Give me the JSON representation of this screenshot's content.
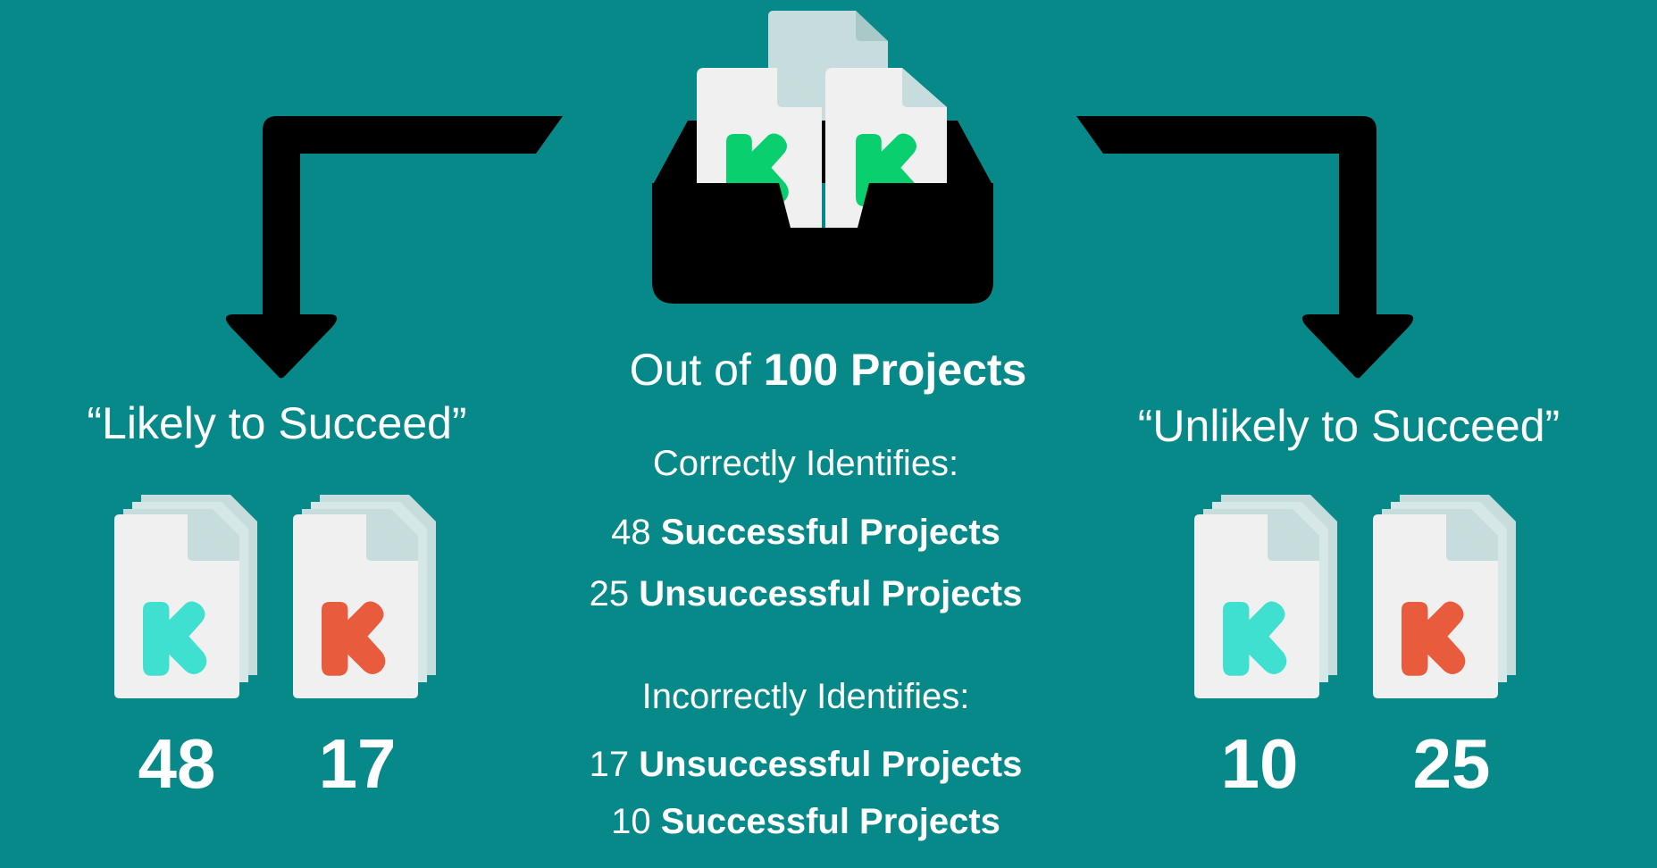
{
  "colors": {
    "background": "#078989",
    "arrow": "#000000",
    "paper": "#f0f0f0",
    "paper_back": "#c7dcdc",
    "k_green": "#0acf6e",
    "k_teal": "#40e0d0",
    "k_red": "#e85b3c",
    "text": "#ffffff"
  },
  "center": {
    "title_prefix": "Out of",
    "title_bold": "100 Projects",
    "correct_heading": "Correctly Identifies:",
    "correct_items": [
      {
        "num": "48",
        "label": "Successful Projects"
      },
      {
        "num": "25",
        "label": "Unsuccessful Projects"
      }
    ],
    "incorrect_heading": "Incorrectly Identifies:",
    "incorrect_items": [
      {
        "num": "17",
        "label": "Unsuccessful Projects"
      },
      {
        "num": "10",
        "label": "Successful Projects"
      }
    ]
  },
  "left": {
    "label": "“Likely to Succeed”",
    "counts": [
      "48",
      "17"
    ],
    "icons": [
      "teal-k-document-stack-icon",
      "red-k-document-stack-icon"
    ]
  },
  "right": {
    "label": "“Unlikely to Succeed”",
    "counts": [
      "10",
      "25"
    ],
    "icons": [
      "teal-k-document-stack-icon",
      "red-k-document-stack-icon"
    ]
  }
}
